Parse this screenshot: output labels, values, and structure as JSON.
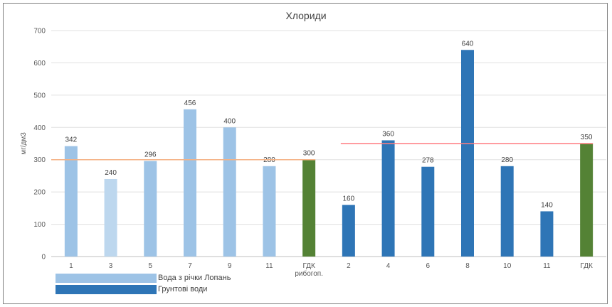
{
  "chart_data": {
    "type": "bar",
    "title": "Хлориди",
    "ylabel": "мг/дм3",
    "xlabel": "",
    "ylim": [
      0,
      700
    ],
    "yticks": [
      0,
      100,
      200,
      300,
      400,
      500,
      600,
      700
    ],
    "categories": [
      "1",
      "3",
      "5",
      "7",
      "9",
      "11",
      "ГДК рибогоп.",
      "2",
      "4",
      "6",
      "8",
      "10",
      "11",
      "ГДК"
    ],
    "values": [
      342,
      240,
      296,
      456,
      400,
      280,
      300,
      160,
      360,
      278,
      640,
      280,
      140,
      350
    ],
    "bar_colors": [
      "#9dc3e6",
      "#bdd7ee",
      "#9dc3e6",
      "#9dc3e6",
      "#9dc3e6",
      "#9dc3e6",
      "#548235",
      "#2e75b6",
      "#2e75b6",
      "#2e75b6",
      "#2e75b6",
      "#2e75b6",
      "#2e75b6",
      "#548235"
    ],
    "reference_lines": [
      {
        "value": 300,
        "color": "#f4b183"
      },
      {
        "value": 350,
        "color": "#ff7c80"
      }
    ],
    "grid": true,
    "legend": [
      {
        "name": "Вода з річки Лопань",
        "color": "#9dc3e6"
      },
      {
        "name": "Грунтові води",
        "color": "#2e75b6"
      }
    ]
  }
}
